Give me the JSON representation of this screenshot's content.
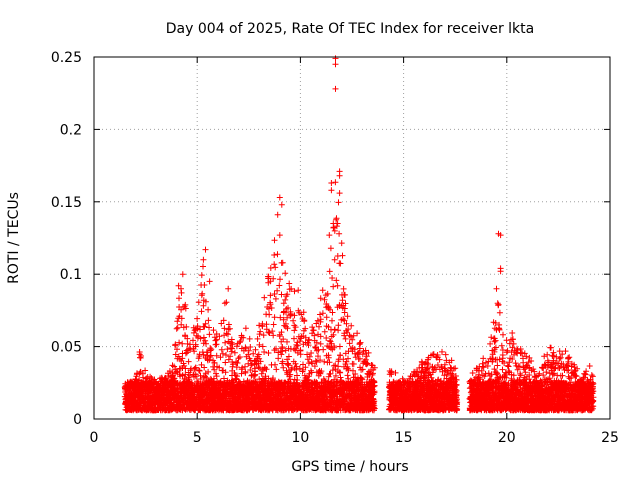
{
  "chart_data": {
    "type": "scatter",
    "title": "Day 004 of 2025, Rate Of TEC Index for receiver lkta",
    "xlabel": "GPS time / hours",
    "ylabel": "ROTI / TECUs",
    "xlim": [
      0,
      25
    ],
    "ylim": [
      0,
      0.25
    ],
    "x_ticks": [
      0,
      5,
      10,
      15,
      20,
      25
    ],
    "x_tick_labels": [
      "0",
      "5",
      "10",
      "15",
      "20",
      "25"
    ],
    "y_ticks": [
      0,
      0.05,
      0.1,
      0.15,
      0.2,
      0.25
    ],
    "y_tick_labels": [
      "0",
      "0.05",
      "0.1",
      "0.15",
      "0.2",
      "0.25"
    ],
    "grid": true,
    "marker": "+",
    "series": [
      {
        "name": "ROTI",
        "color": "#ff0000",
        "segments": [
          {
            "t_start": 1.5,
            "t_end": 13.6
          },
          {
            "t_start": 14.3,
            "t_end": 17.6
          },
          {
            "t_start": 18.2,
            "t_end": 24.2
          }
        ],
        "envelope": [
          {
            "t": 1.5,
            "max": 0.025
          },
          {
            "t": 2.0,
            "max": 0.03
          },
          {
            "t": 2.2,
            "max": 0.05
          },
          {
            "t": 2.6,
            "max": 0.03
          },
          {
            "t": 3.0,
            "max": 0.028
          },
          {
            "t": 3.5,
            "max": 0.03
          },
          {
            "t": 3.8,
            "max": 0.04
          },
          {
            "t": 4.1,
            "max": 0.09
          },
          {
            "t": 4.3,
            "max": 0.1
          },
          {
            "t": 4.6,
            "max": 0.05
          },
          {
            "t": 5.0,
            "max": 0.075
          },
          {
            "t": 5.3,
            "max": 0.11
          },
          {
            "t": 5.6,
            "max": 0.065
          },
          {
            "t": 6.0,
            "max": 0.06
          },
          {
            "t": 6.4,
            "max": 0.085
          },
          {
            "t": 6.8,
            "max": 0.045
          },
          {
            "t": 7.3,
            "max": 0.07
          },
          {
            "t": 7.8,
            "max": 0.05
          },
          {
            "t": 8.3,
            "max": 0.09
          },
          {
            "t": 8.7,
            "max": 0.12
          },
          {
            "t": 8.9,
            "max": 0.15
          },
          {
            "t": 9.3,
            "max": 0.1
          },
          {
            "t": 9.7,
            "max": 0.09
          },
          {
            "t": 10.0,
            "max": 0.09
          },
          {
            "t": 10.4,
            "max": 0.06
          },
          {
            "t": 10.8,
            "max": 0.07
          },
          {
            "t": 11.2,
            "max": 0.11
          },
          {
            "t": 11.5,
            "max": 0.16
          },
          {
            "t": 11.8,
            "max": 0.17
          },
          {
            "t": 12.1,
            "max": 0.1
          },
          {
            "t": 12.5,
            "max": 0.065
          },
          {
            "t": 13.0,
            "max": 0.055
          },
          {
            "t": 13.6,
            "max": 0.04
          },
          {
            "t": 14.3,
            "max": 0.035
          },
          {
            "t": 14.8,
            "max": 0.03
          },
          {
            "t": 15.3,
            "max": 0.03
          },
          {
            "t": 15.8,
            "max": 0.04
          },
          {
            "t": 16.4,
            "max": 0.045
          },
          {
            "t": 16.9,
            "max": 0.05
          },
          {
            "t": 17.3,
            "max": 0.045
          },
          {
            "t": 17.6,
            "max": 0.03
          },
          {
            "t": 18.2,
            "max": 0.03
          },
          {
            "t": 18.8,
            "max": 0.04
          },
          {
            "t": 19.3,
            "max": 0.065
          },
          {
            "t": 19.6,
            "max": 0.085
          },
          {
            "t": 19.9,
            "max": 0.05
          },
          {
            "t": 20.2,
            "max": 0.065
          },
          {
            "t": 20.6,
            "max": 0.05
          },
          {
            "t": 21.1,
            "max": 0.045
          },
          {
            "t": 21.6,
            "max": 0.04
          },
          {
            "t": 22.1,
            "max": 0.05
          },
          {
            "t": 22.6,
            "max": 0.05
          },
          {
            "t": 23.1,
            "max": 0.045
          },
          {
            "t": 23.6,
            "max": 0.03
          },
          {
            "t": 24.2,
            "max": 0.04
          }
        ],
        "notable_points": [
          {
            "x": 11.7,
            "y": 0.249
          },
          {
            "x": 11.7,
            "y": 0.245
          },
          {
            "x": 11.7,
            "y": 0.228
          },
          {
            "x": 11.9,
            "y": 0.171
          },
          {
            "x": 11.9,
            "y": 0.168
          },
          {
            "x": 11.5,
            "y": 0.163
          },
          {
            "x": 11.5,
            "y": 0.158
          },
          {
            "x": 11.9,
            "y": 0.156
          },
          {
            "x": 9.0,
            "y": 0.153
          },
          {
            "x": 9.1,
            "y": 0.148
          },
          {
            "x": 8.9,
            "y": 0.141
          },
          {
            "x": 11.8,
            "y": 0.135
          },
          {
            "x": 11.6,
            "y": 0.132
          },
          {
            "x": 11.4,
            "y": 0.127
          },
          {
            "x": 9.0,
            "y": 0.127
          },
          {
            "x": 19.6,
            "y": 0.128
          },
          {
            "x": 19.7,
            "y": 0.127
          },
          {
            "x": 5.4,
            "y": 0.117
          },
          {
            "x": 5.3,
            "y": 0.11
          },
          {
            "x": 19.7,
            "y": 0.104
          },
          {
            "x": 19.7,
            "y": 0.102
          },
          {
            "x": 4.3,
            "y": 0.1
          },
          {
            "x": 5.6,
            "y": 0.095
          },
          {
            "x": 4.1,
            "y": 0.092
          },
          {
            "x": 19.5,
            "y": 0.09
          },
          {
            "x": 6.5,
            "y": 0.09
          },
          {
            "x": 19.6,
            "y": 0.079
          }
        ]
      }
    ]
  }
}
